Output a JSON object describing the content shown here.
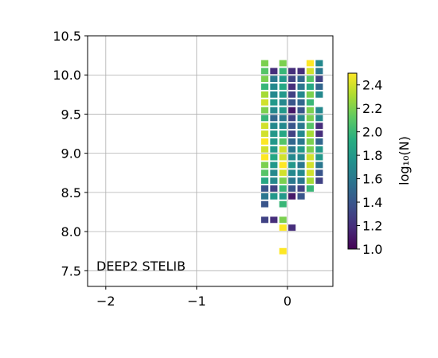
{
  "chart_data": {
    "type": "heatmap",
    "annotation": "DEEP2 STELIB",
    "xlabel": "",
    "ylabel": "",
    "xlim": [
      -2.2,
      0.5
    ],
    "ylim": [
      7.3,
      10.5
    ],
    "grid": true,
    "x_ticks": [
      -2,
      -1,
      0
    ],
    "x_tick_labels": [
      "−2",
      "−1",
      "0"
    ],
    "y_ticks": [
      7.5,
      8.0,
      8.5,
      9.0,
      9.5,
      10.0,
      10.5
    ],
    "y_tick_labels": [
      "7.5",
      "8.0",
      "8.5",
      "9.0",
      "9.5",
      "10.0",
      "10.5"
    ],
    "cell_width": 0.08,
    "cell_height": 0.08,
    "colormap": "viridis",
    "colorbar": {
      "label": "log₁₀(N)",
      "range": [
        1.0,
        2.5
      ],
      "ticks": [
        1.0,
        1.2,
        1.4,
        1.6,
        1.8,
        2.0,
        2.2,
        2.4
      ],
      "tick_labels": [
        "1.0",
        "1.2",
        "1.4",
        "1.6",
        "1.8",
        "2.0",
        "2.2",
        "2.4"
      ]
    },
    "columns_x": [
      -0.25,
      -0.15,
      -0.05,
      0.05,
      0.15,
      0.25,
      0.35
    ],
    "cells": [
      [
        -0.25,
        10.15,
        2.2
      ],
      [
        -0.25,
        10.05,
        2.1
      ],
      [
        -0.25,
        9.95,
        2.2
      ],
      [
        -0.25,
        9.85,
        2.0
      ],
      [
        -0.25,
        9.75,
        2.3
      ],
      [
        -0.25,
        9.65,
        2.4
      ],
      [
        -0.25,
        9.55,
        2.2
      ],
      [
        -0.25,
        9.45,
        2.0
      ],
      [
        -0.25,
        9.35,
        2.4
      ],
      [
        -0.25,
        9.25,
        2.4
      ],
      [
        -0.25,
        9.15,
        2.5
      ],
      [
        -0.25,
        9.05,
        2.4
      ],
      [
        -0.25,
        8.95,
        2.5
      ],
      [
        -0.25,
        8.85,
        2.2
      ],
      [
        -0.25,
        8.75,
        2.1
      ],
      [
        -0.25,
        8.65,
        1.9
      ],
      [
        -0.25,
        8.55,
        1.4
      ],
      [
        -0.25,
        8.45,
        1.6
      ],
      [
        -0.25,
        8.35,
        1.4
      ],
      [
        -0.25,
        8.15,
        1.3
      ],
      [
        -0.15,
        10.05,
        1.2
      ],
      [
        -0.15,
        9.95,
        1.6
      ],
      [
        -0.15,
        9.85,
        1.7
      ],
      [
        -0.15,
        9.75,
        1.7
      ],
      [
        -0.15,
        9.65,
        1.8
      ],
      [
        -0.15,
        9.55,
        1.7
      ],
      [
        -0.15,
        9.45,
        1.5
      ],
      [
        -0.15,
        9.35,
        1.7
      ],
      [
        -0.15,
        9.25,
        1.8
      ],
      [
        -0.15,
        9.15,
        1.8
      ],
      [
        -0.15,
        9.05,
        1.8
      ],
      [
        -0.15,
        8.95,
        1.9
      ],
      [
        -0.15,
        8.85,
        1.8
      ],
      [
        -0.15,
        8.75,
        1.7
      ],
      [
        -0.15,
        8.65,
        1.7
      ],
      [
        -0.15,
        8.55,
        1.3
      ],
      [
        -0.15,
        8.45,
        1.8
      ],
      [
        -0.15,
        8.15,
        1.2
      ],
      [
        -0.05,
        10.15,
        2.2
      ],
      [
        -0.05,
        10.05,
        2.0
      ],
      [
        -0.05,
        9.95,
        1.8
      ],
      [
        -0.05,
        9.85,
        1.9
      ],
      [
        -0.05,
        9.75,
        1.8
      ],
      [
        -0.05,
        9.65,
        1.7
      ],
      [
        -0.05,
        9.55,
        1.8
      ],
      [
        -0.05,
        9.45,
        1.6
      ],
      [
        -0.05,
        9.35,
        1.7
      ],
      [
        -0.05,
        9.25,
        1.9
      ],
      [
        -0.05,
        9.15,
        2.1
      ],
      [
        -0.05,
        9.05,
        2.4
      ],
      [
        -0.05,
        8.95,
        2.4
      ],
      [
        -0.05,
        8.85,
        2.5
      ],
      [
        -0.05,
        8.75,
        2.4
      ],
      [
        -0.05,
        8.65,
        2.2
      ],
      [
        -0.05,
        8.55,
        2.0
      ],
      [
        -0.05,
        8.45,
        1.8
      ],
      [
        -0.05,
        8.35,
        2.0
      ],
      [
        -0.05,
        8.15,
        2.2
      ],
      [
        -0.05,
        8.05,
        2.5
      ],
      [
        -0.05,
        7.75,
        2.5
      ],
      [
        0.05,
        10.05,
        1.2
      ],
      [
        0.05,
        9.95,
        1.3
      ],
      [
        0.05,
        9.85,
        1.2
      ],
      [
        0.05,
        9.75,
        1.3
      ],
      [
        0.05,
        9.65,
        1.4
      ],
      [
        0.05,
        9.55,
        1.1
      ],
      [
        0.05,
        9.45,
        1.3
      ],
      [
        0.05,
        9.35,
        1.4
      ],
      [
        0.05,
        9.25,
        1.3
      ],
      [
        0.05,
        9.15,
        1.5
      ],
      [
        0.05,
        9.05,
        1.6
      ],
      [
        0.05,
        8.95,
        1.7
      ],
      [
        0.05,
        8.85,
        1.8
      ],
      [
        0.05,
        8.75,
        1.7
      ],
      [
        0.05,
        8.65,
        1.6
      ],
      [
        0.05,
        8.55,
        1.4
      ],
      [
        0.05,
        8.45,
        1.1
      ],
      [
        0.05,
        8.05,
        1.2
      ],
      [
        0.15,
        10.05,
        1.2
      ],
      [
        0.15,
        9.95,
        1.5
      ],
      [
        0.15,
        9.85,
        1.6
      ],
      [
        0.15,
        9.75,
        1.7
      ],
      [
        0.15,
        9.65,
        1.5
      ],
      [
        0.15,
        9.55,
        1.4
      ],
      [
        0.15,
        9.45,
        1.7
      ],
      [
        0.15,
        9.35,
        1.6
      ],
      [
        0.15,
        9.25,
        1.7
      ],
      [
        0.15,
        9.15,
        1.6
      ],
      [
        0.15,
        9.05,
        1.8
      ],
      [
        0.15,
        8.95,
        1.7
      ],
      [
        0.15,
        8.85,
        1.6
      ],
      [
        0.15,
        8.75,
        1.7
      ],
      [
        0.15,
        8.65,
        1.6
      ],
      [
        0.15,
        8.55,
        1.3
      ],
      [
        0.15,
        8.45,
        1.4
      ],
      [
        0.25,
        10.15,
        2.5
      ],
      [
        0.25,
        10.05,
        2.4
      ],
      [
        0.25,
        9.95,
        2.1
      ],
      [
        0.25,
        9.85,
        1.9
      ],
      [
        0.25,
        9.75,
        2.2
      ],
      [
        0.25,
        9.65,
        2.0
      ],
      [
        0.25,
        9.55,
        2.2
      ],
      [
        0.25,
        9.45,
        2.2
      ],
      [
        0.25,
        9.35,
        2.1
      ],
      [
        0.25,
        9.25,
        2.3
      ],
      [
        0.25,
        9.15,
        2.2
      ],
      [
        0.25,
        9.05,
        2.2
      ],
      [
        0.25,
        8.95,
        2.4
      ],
      [
        0.25,
        8.85,
        2.4
      ],
      [
        0.25,
        8.75,
        2.4
      ],
      [
        0.25,
        8.65,
        2.3
      ],
      [
        0.25,
        8.55,
        2.0
      ],
      [
        0.35,
        10.15,
        1.7
      ],
      [
        0.35,
        10.05,
        1.6
      ],
      [
        0.35,
        9.95,
        1.3
      ],
      [
        0.35,
        9.85,
        1.5
      ],
      [
        0.35,
        9.75,
        1.7
      ],
      [
        0.35,
        9.55,
        1.7
      ],
      [
        0.35,
        9.45,
        1.7
      ],
      [
        0.35,
        9.35,
        1.2
      ],
      [
        0.35,
        9.25,
        1.2
      ],
      [
        0.35,
        9.15,
        1.5
      ],
      [
        0.35,
        9.05,
        1.8
      ],
      [
        0.35,
        8.95,
        1.8
      ],
      [
        0.35,
        8.85,
        1.6
      ],
      [
        0.35,
        8.75,
        1.4
      ],
      [
        0.35,
        8.65,
        1.3
      ]
    ]
  }
}
